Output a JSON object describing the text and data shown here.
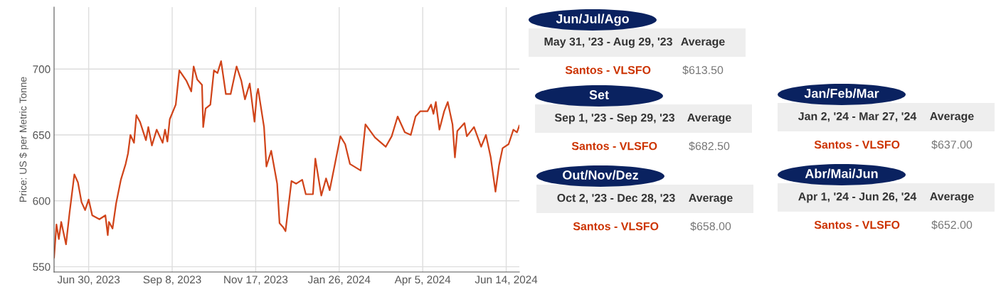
{
  "chart_data": [
    {
      "type": "line",
      "ylabel": "Price: US $ per Metric Tonne",
      "xlim": [
        "2023-06-01",
        "2024-06-25"
      ],
      "ylim": [
        546,
        747
      ],
      "yticks": [
        550,
        600,
        650,
        700
      ],
      "xticks": [
        {
          "value": "2023-06-30",
          "label": "Jun 30, 2023"
        },
        {
          "value": "2023-09-08",
          "label": "Sep 8, 2023"
        },
        {
          "value": "2023-11-17",
          "label": "Nov 17, 2023"
        },
        {
          "value": "2024-01-26",
          "label": "Jan 26, 2024"
        },
        {
          "value": "2024-04-05",
          "label": "Apr 5, 2024"
        },
        {
          "value": "2024-06-14",
          "label": "Jun 14, 2024"
        }
      ],
      "grid": true,
      "legend": false,
      "marker": "none",
      "line_style": "solid",
      "x": [
        "2023-06-01",
        "2023-06-03",
        "2023-06-05",
        "2023-06-07",
        "2023-06-11",
        "2023-06-14",
        "2023-06-18",
        "2023-06-21",
        "2023-06-24",
        "2023-06-27",
        "2023-06-30",
        "2023-07-03",
        "2023-07-09",
        "2023-07-14",
        "2023-07-16",
        "2023-07-17",
        "2023-07-20",
        "2023-07-23",
        "2023-07-27",
        "2023-07-31",
        "2023-08-02",
        "2023-08-04",
        "2023-08-07",
        "2023-08-09",
        "2023-08-12",
        "2023-08-17",
        "2023-08-19",
        "2023-08-22",
        "2023-08-26",
        "2023-08-31",
        "2023-09-02",
        "2023-09-04",
        "2023-09-06",
        "2023-09-11",
        "2023-09-14",
        "2023-09-20",
        "2023-09-24",
        "2023-09-26",
        "2023-09-29",
        "2023-10-03",
        "2023-10-04",
        "2023-10-06",
        "2023-10-10",
        "2023-10-13",
        "2023-10-16",
        "2023-10-19",
        "2023-10-23",
        "2023-10-27",
        "2023-11-01",
        "2023-11-05",
        "2023-11-08",
        "2023-11-12",
        "2023-11-16",
        "2023-11-18",
        "2023-11-19",
        "2023-11-24",
        "2023-11-26",
        "2023-11-30",
        "2023-12-05",
        "2023-12-07",
        "2023-12-10",
        "2023-12-12",
        "2023-12-17",
        "2023-12-21",
        "2023-12-26",
        "2023-12-29",
        "2024-01-04",
        "2024-01-06",
        "2024-01-11",
        "2024-01-15",
        "2024-01-18",
        "2024-01-22",
        "2024-01-27",
        "2024-01-31",
        "2024-02-04",
        "2024-02-13",
        "2024-02-17",
        "2024-02-25",
        "2024-03-05",
        "2024-03-10",
        "2024-03-15",
        "2024-03-21",
        "2024-03-26",
        "2024-03-30",
        "2024-04-03",
        "2024-04-09",
        "2024-04-12",
        "2024-04-14",
        "2024-04-16",
        "2024-04-19",
        "2024-04-23",
        "2024-04-26",
        "2024-04-30",
        "2024-05-02",
        "2024-05-04",
        "2024-05-10",
        "2024-05-12",
        "2024-05-18",
        "2024-05-24",
        "2024-05-28",
        "2024-06-01",
        "2024-06-05",
        "2024-06-08",
        "2024-06-11",
        "2024-06-16",
        "2024-06-20",
        "2024-06-23",
        "2024-06-25"
      ],
      "series": [
        {
          "color": "#d0441a",
          "values": [
            557,
            582,
            571,
            584,
            567,
            591,
            620,
            614,
            599,
            593,
            601,
            589,
            586,
            589,
            574,
            584,
            579,
            598,
            616,
            628,
            636,
            650,
            644,
            665,
            660,
            646,
            656,
            642,
            654,
            644,
            654,
            645,
            662,
            673,
            699,
            691,
            683,
            702,
            692,
            688,
            656,
            670,
            673,
            699,
            697,
            706,
            681,
            681,
            702,
            691,
            677,
            689,
            660,
            681,
            685,
            656,
            626,
            638,
            613,
            583,
            580,
            577,
            615,
            613,
            616,
            605,
            605,
            632,
            604,
            617,
            608,
            626,
            649,
            643,
            628,
            623,
            658,
            648,
            641,
            649,
            664,
            652,
            650,
            664,
            668,
            668,
            673,
            666,
            675,
            654,
            668,
            675,
            658,
            633,
            653,
            659,
            649,
            656,
            641,
            650,
            633,
            607,
            627,
            640,
            643,
            654,
            652,
            657
          ]
        }
      ]
    },
    {
      "type": "other",
      "annotations": [
        "Jun/Jul/Ago",
        "May 31, '23 - Aug 29, '23",
        "Average",
        "Santos - VLSFO",
        "$613.50",
        "Set",
        "Sep 1, '23 - Sep 29, '23",
        "Average",
        "Santos - VLSFO",
        "$682.50",
        "Jan/Feb/Mar",
        "Jan 2, '24 - Mar 27, '24",
        "Average",
        "Santos - VLSFO",
        "$637.00",
        "Out/Nov/Dez",
        "Oct 2, '23 - Dec 28, '23",
        "Average",
        "Santos - VLSFO",
        "$658.00",
        "Abr/Mai/Jun",
        "Apr 1, '24 - Jun 26, '24",
        "Average",
        "Santos - VLSFO",
        "$652.00"
      ]
    }
  ]
}
